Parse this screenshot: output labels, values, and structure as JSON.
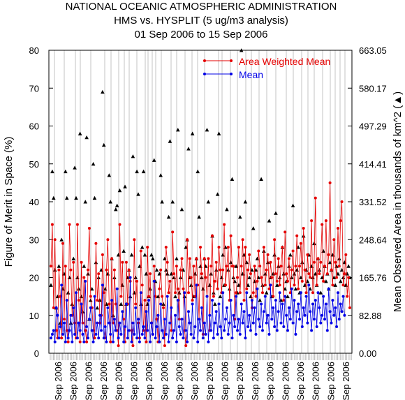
{
  "chart_data": {
    "type": "line",
    "title": "NATIONAL OCEANIC ATMOSPHERIC ADMINISTRATION",
    "subtitle": "HMS vs. HYSPLIT (5 ug/m3 analysis)",
    "subtitle2": "01 Sep 2006 to 15 Sep 2006",
    "ylabel": "Figure of Merit in Space (%)",
    "y2label": "Mean Observed Area in thousands of km^2 (▲)",
    "ylim": [
      0,
      80
    ],
    "y2lim": [
      0,
      663.05
    ],
    "y_ticks": [
      "0",
      "10",
      "20",
      "30",
      "40",
      "50",
      "60",
      "70",
      "80"
    ],
    "y2_ticks": [
      "0.00",
      "82.88",
      "165.76",
      "248.64",
      "331.52",
      "414.41",
      "497.29",
      "580.17",
      "663.05"
    ],
    "x_tick_labels": [
      "Sep 2006",
      "Sep 2006",
      "Sep 2006",
      "Sep 2006",
      "Sep 2006",
      "Sep 2006",
      "Sep 2006",
      "Sep 2006",
      "Sep 2006",
      "Sep 2006",
      "Sep 2006",
      "Sep 2006",
      "Sep 2006",
      "Sep 2006",
      "Sep 2006",
      "Sep 2006",
      "Sep 2006",
      "Sep 2006",
      "Sep 2006",
      "Sep 2006"
    ],
    "legend_position": "top-right",
    "legend": [
      {
        "name": "Area Weighted Mean",
        "color": "#e60000"
      },
      {
        "name": "Mean",
        "color": "#0000e6"
      }
    ],
    "observed_area_color": "#000000",
    "series": [
      {
        "name": "Area Weighted Mean",
        "color": "#e60000",
        "values": [
          23,
          34,
          12,
          30,
          6,
          4,
          22,
          15,
          4,
          29,
          9,
          23,
          6,
          3,
          34,
          22,
          10,
          24,
          8,
          4,
          34,
          14,
          3,
          24,
          8,
          20,
          6,
          3,
          22,
          33,
          15,
          12,
          6,
          4,
          29,
          14,
          21,
          8,
          10,
          26,
          16,
          4,
          22,
          30,
          13,
          3,
          25,
          8,
          22,
          13,
          6,
          2,
          34,
          15,
          24,
          9,
          3,
          24,
          13,
          22,
          19,
          6,
          2,
          30,
          13,
          19,
          8,
          4,
          27,
          18,
          6,
          14,
          3,
          28,
          15,
          21,
          8,
          5,
          23,
          15,
          9,
          3,
          17,
          22,
          15,
          12,
          2,
          28,
          24,
          16,
          19,
          6,
          32,
          21,
          16,
          23,
          17,
          9,
          22,
          25,
          17,
          6,
          2,
          30,
          16,
          25,
          20,
          14,
          23,
          15,
          25,
          18,
          9,
          28,
          21,
          5,
          25,
          20,
          15,
          25,
          6,
          23,
          31,
          15,
          19,
          24,
          17,
          28,
          22,
          16,
          22,
          34,
          18,
          23,
          28,
          14,
          31,
          23,
          23,
          9,
          16,
          20,
          28,
          16,
          23,
          30,
          14,
          28,
          17,
          22,
          26,
          21,
          12,
          16,
          23,
          15,
          19,
          27,
          23,
          20,
          16,
          28,
          18,
          22,
          26,
          17,
          24,
          20,
          15,
          30,
          21,
          19,
          25,
          18,
          23,
          28,
          14,
          32,
          21,
          19,
          25,
          16,
          22,
          27,
          18,
          23,
          31,
          17,
          23,
          29,
          19,
          33,
          22,
          16,
          26,
          21,
          20,
          35,
          16,
          24,
          41,
          18,
          25,
          21,
          24,
          34,
          19,
          23,
          35,
          21,
          26,
          45,
          22,
          18,
          30,
          24,
          20,
          33,
          23,
          35,
          40,
          18,
          21,
          26,
          15,
          20,
          12
        ]
      },
      {
        "name": "Mean",
        "color": "#0000e6",
        "values": [
          4,
          5,
          6,
          3,
          12,
          10,
          4,
          7,
          18,
          5,
          8,
          3,
          14,
          4,
          6,
          10,
          3,
          12,
          5,
          16,
          4,
          8,
          6,
          13,
          5,
          3,
          19,
          7,
          4,
          9,
          12,
          6,
          3,
          15,
          5,
          8,
          4,
          10,
          6,
          18,
          4,
          7,
          3,
          12,
          8,
          5,
          14,
          3,
          9,
          6,
          17,
          4,
          8,
          5,
          11,
          3,
          7,
          13,
          4,
          6,
          20,
          3,
          8,
          5,
          12,
          4,
          9,
          3,
          16,
          5,
          7,
          4,
          11,
          6,
          14,
          3,
          8,
          5,
          19,
          4,
          7,
          10,
          3,
          13,
          6,
          4,
          9,
          5,
          15,
          3,
          8,
          12,
          4,
          6,
          10,
          3,
          14,
          7,
          5,
          9,
          4,
          16,
          6,
          3,
          11,
          8,
          5,
          13,
          4,
          7,
          18,
          3,
          9,
          6,
          12,
          4,
          8,
          5,
          15,
          3,
          10,
          6,
          14,
          4,
          8,
          11,
          5,
          13,
          7,
          4,
          16,
          6,
          9,
          12,
          5,
          8,
          14,
          4,
          10,
          7,
          15,
          6,
          9,
          5,
          13,
          8,
          11,
          4,
          16,
          7,
          10,
          6,
          14,
          8,
          12,
          5,
          17,
          9,
          7,
          13,
          6,
          11,
          15,
          8,
          10,
          5,
          18,
          9,
          12,
          7,
          14,
          6,
          11,
          16,
          8,
          13,
          7,
          15,
          10,
          6,
          12,
          9,
          17,
          8,
          14,
          5,
          11,
          13,
          9,
          16,
          7,
          12,
          10,
          15,
          8,
          18,
          11,
          6,
          13,
          9,
          14,
          7,
          16,
          12,
          8,
          10,
          15,
          9,
          13,
          6,
          17,
          11,
          8,
          14,
          10,
          12,
          7,
          16,
          9,
          13,
          11,
          15,
          10
        ]
      },
      {
        "name": "Observed Area",
        "color": "#000000",
        "values": [
          18,
          48,
          41,
          22,
          12,
          15,
          23,
          8,
          30,
          17,
          21,
          48,
          41,
          16,
          20,
          8,
          13,
          25,
          49,
          41,
          20,
          17,
          58,
          15,
          11,
          23,
          40,
          57,
          21,
          9,
          14,
          17,
          50,
          41,
          24,
          12,
          20,
          14,
          22,
          69,
          55,
          17,
          13,
          21,
          47,
          40,
          25,
          10,
          20,
          38,
          39,
          26,
          43,
          13,
          18,
          27,
          44,
          13,
          20,
          22,
          15,
          26,
          52,
          16,
          20,
          48,
          42,
          23,
          13,
          28,
          48,
          26,
          21,
          13,
          15,
          17,
          26,
          25,
          51,
          19,
          22,
          15,
          21,
          47,
          40,
          13,
          25,
          22,
          21,
          36,
          56,
          21,
          40,
          20,
          15,
          25,
          59,
          16,
          20,
          38,
          22,
          15,
          28,
          30,
          54,
          20,
          18,
          58,
          15,
          21,
          25,
          48,
          36,
          23,
          20,
          17,
          25,
          23,
          59,
          40,
          18,
          21,
          31,
          16,
          13,
          22,
          42,
          58,
          15,
          20,
          26,
          18,
          28,
          38,
          22,
          17,
          24,
          46,
          20,
          19,
          23,
          16,
          18,
          36,
          80,
          21,
          26,
          40,
          24,
          18,
          20,
          15,
          22,
          33,
          19,
          22,
          25,
          20,
          14,
          46,
          18,
          27,
          21,
          16,
          24,
          35,
          20,
          15,
          21,
          26,
          37,
          18,
          23,
          20,
          14,
          28,
          21,
          17,
          19,
          15,
          23,
          26,
          20,
          39,
          21,
          17,
          22,
          28,
          16,
          20,
          24,
          31,
          18,
          22,
          19,
          26,
          17,
          23,
          20,
          29,
          21,
          18,
          25,
          22,
          16,
          20,
          27,
          23,
          19,
          21,
          17,
          24,
          22,
          26,
          20,
          18,
          23,
          21,
          25,
          19,
          22,
          20,
          24,
          18,
          21,
          23,
          20
        ]
      }
    ]
  }
}
